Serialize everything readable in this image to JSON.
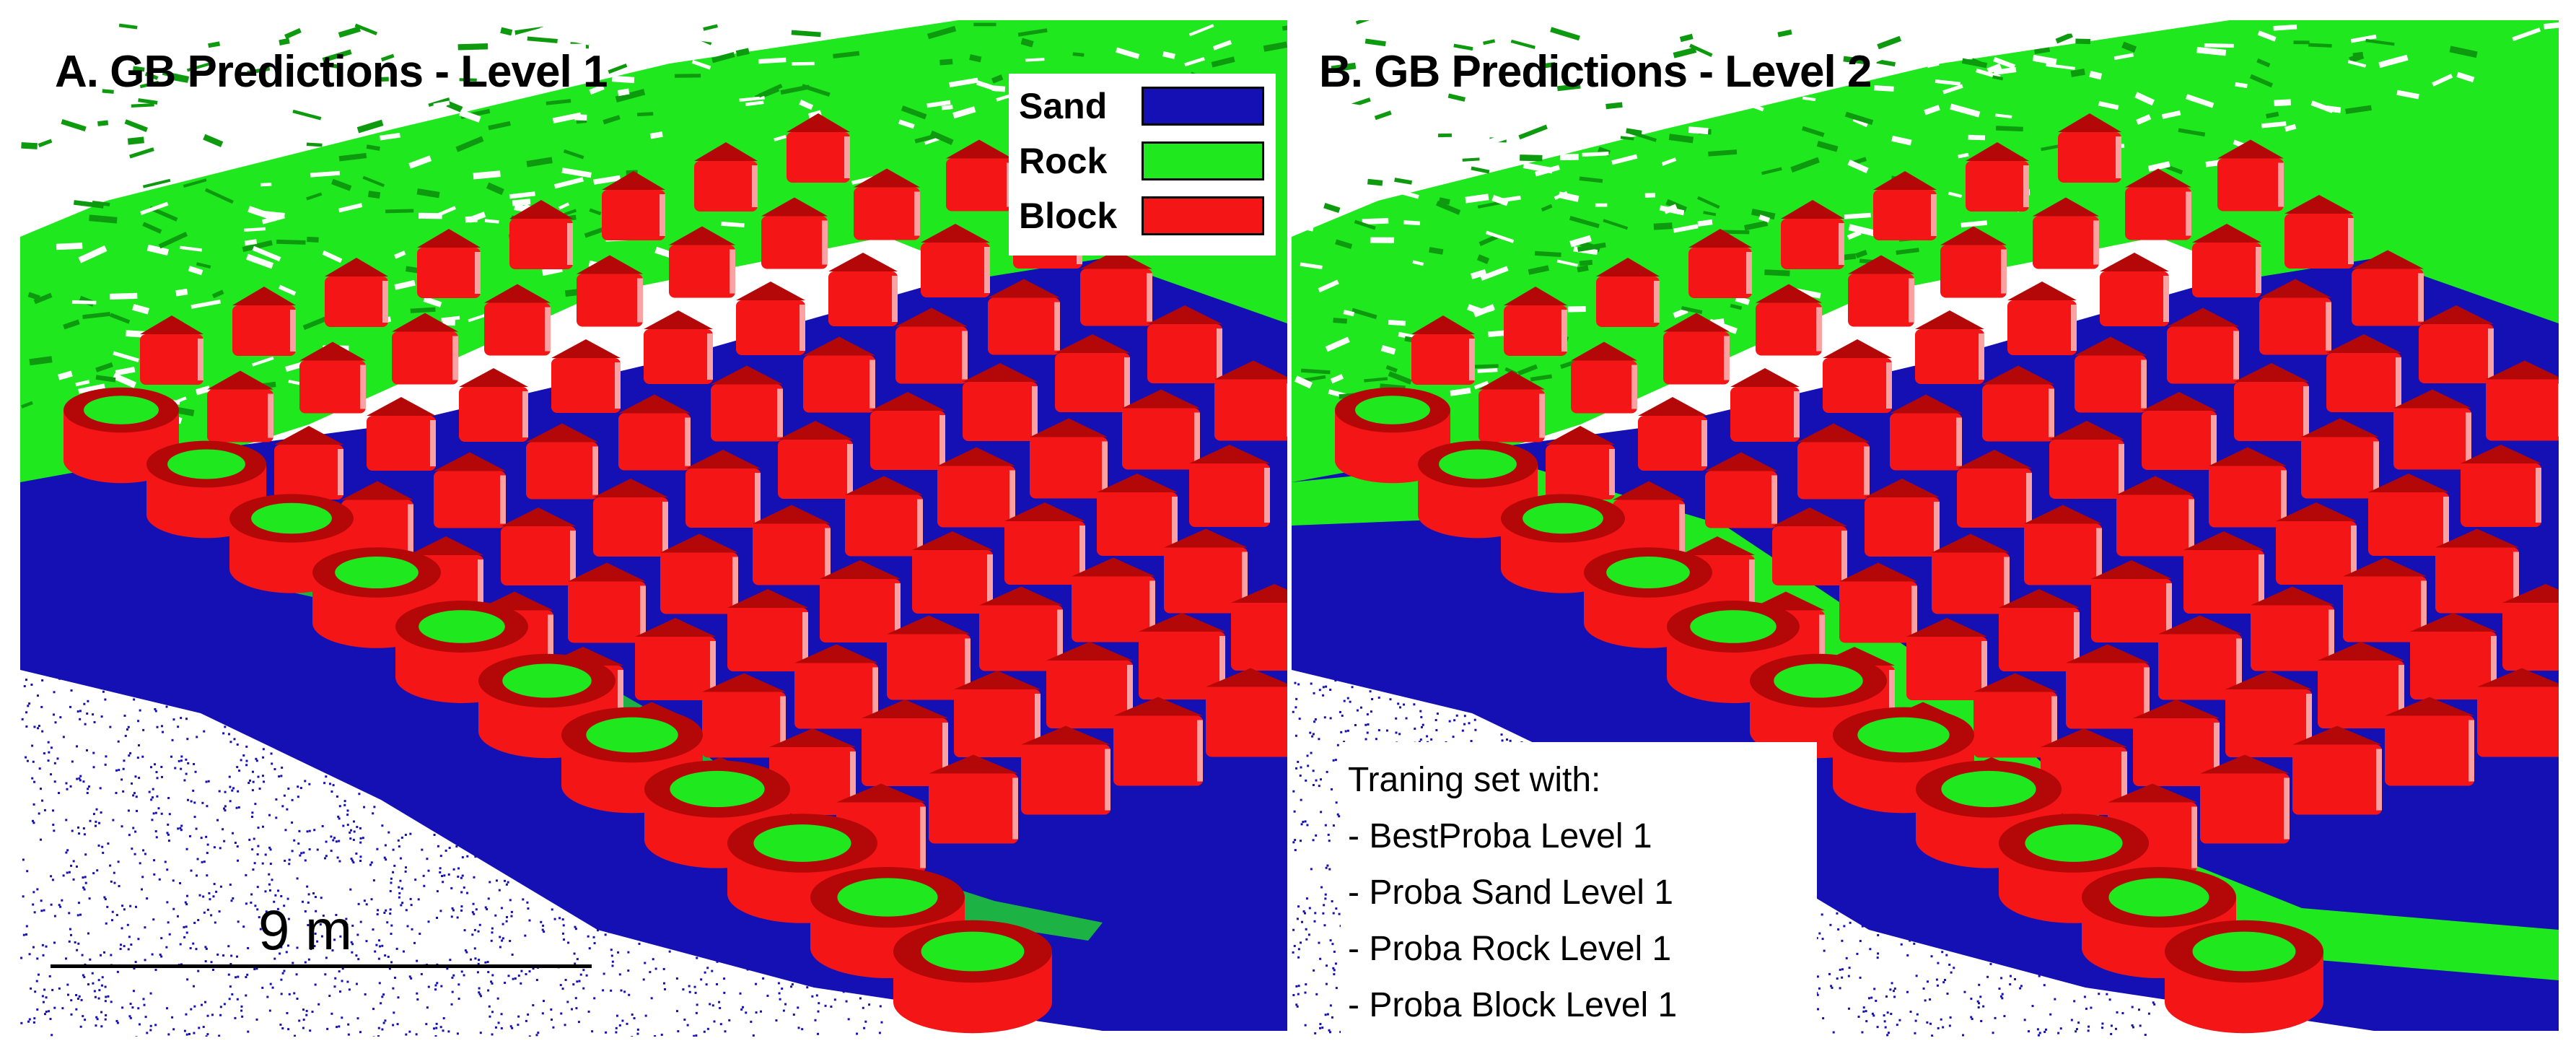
{
  "colors": {
    "sand": "#1410b4",
    "rock": "#1fe81f",
    "block": "#f41616",
    "block_dark": "#b40808",
    "rock_dark": "#0e9a0e",
    "background": "#ffffff"
  },
  "panels": [
    {
      "title": "A. GB Predictions - Level 1",
      "legend": [
        {
          "label": "Sand",
          "color": "#1410b4"
        },
        {
          "label": "Rock",
          "color": "#1fe81f"
        },
        {
          "label": "Block",
          "color": "#f41616"
        }
      ],
      "scale_label": "9 m"
    },
    {
      "title": "B. GB Predictions - Level 2",
      "note": {
        "heading": "Traning set with:",
        "items": [
          "- BestProba Level 1",
          "- Proba Sand Level 1",
          "- Proba Rock Level 1",
          "- Proba Block Level 1"
        ]
      }
    }
  ]
}
